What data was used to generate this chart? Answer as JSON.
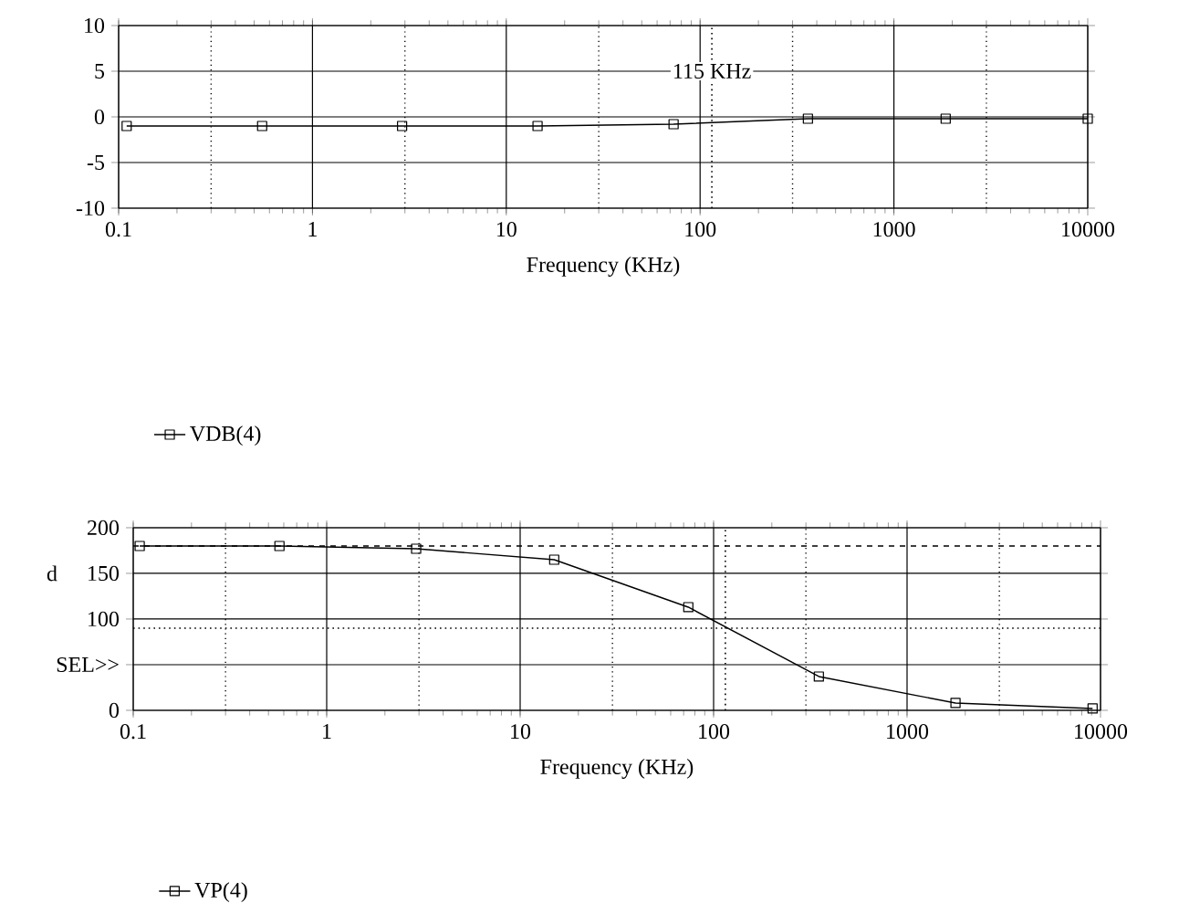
{
  "chart_data": [
    {
      "type": "line",
      "xlabel": "Frequency (KHz)",
      "log": "x",
      "grid": true,
      "legend": "bottom left",
      "marker": "square",
      "line_style": "solid",
      "xlim": [
        0.1,
        10000
      ],
      "xticks": [
        0.1,
        {
          "value": 0.3,
          "label": null
        },
        1,
        {
          "value": 3,
          "label": null
        },
        10,
        {
          "value": 30,
          "label": null
        },
        100,
        {
          "value": 300,
          "label": null
        },
        1000,
        {
          "value": 3000,
          "label": null
        },
        10000
      ],
      "ylim": [
        -10,
        10
      ],
      "yticks": [
        -10,
        -5,
        0,
        5,
        10
      ],
      "series": [
        {
          "name": "VDB(4)",
          "color": "#000000",
          "x": [
            0.11,
            0.55,
            2.9,
            14.5,
            73,
            360,
            1850,
            10000
          ],
          "values": [
            -1,
            -1,
            -1,
            -1,
            -0.8,
            -0.2,
            -0.2,
            -0.2
          ]
        }
      ],
      "ref_lines": [
        {
          "axis": "x",
          "value": 115,
          "label": "115 KHz",
          "line_style": "dotted",
          "color": "#000000"
        }
      ]
    },
    {
      "type": "line",
      "xlabel": "Frequency (KHz)",
      "ylabel": "d",
      "log": "x",
      "grid": true,
      "legend": "bottom left",
      "marker": "square",
      "line_style": "solid",
      "xlim": [
        0.1,
        10000
      ],
      "xticks": [
        0.1,
        {
          "value": 0.3,
          "label": null
        },
        1,
        {
          "value": 3,
          "label": null
        },
        10,
        {
          "value": 30,
          "label": null
        },
        100,
        {
          "value": 300,
          "label": null
        },
        1000,
        {
          "value": 3000,
          "label": null
        },
        10000
      ],
      "ylim": [
        0,
        200
      ],
      "yticks": [
        0,
        {
          "value": 50,
          "label": "SEL>>"
        },
        100,
        150,
        200
      ],
      "series": [
        {
          "name": "VP(4)",
          "color": "#000000",
          "x": [
            0.108,
            0.57,
            2.9,
            15,
            74,
            350,
            1780,
            9100
          ],
          "values": [
            180,
            180,
            177,
            165,
            113,
            37,
            8,
            2
          ]
        }
      ],
      "ref_lines": [
        {
          "axis": "y",
          "value": 180,
          "line_style": "dashed",
          "color": "#000000"
        },
        {
          "axis": "y",
          "value": 90,
          "line_style": "dotted",
          "color": "#000000"
        },
        {
          "axis": "x",
          "value": 115,
          "line_style": "dotted",
          "color": "#000000"
        }
      ]
    }
  ]
}
